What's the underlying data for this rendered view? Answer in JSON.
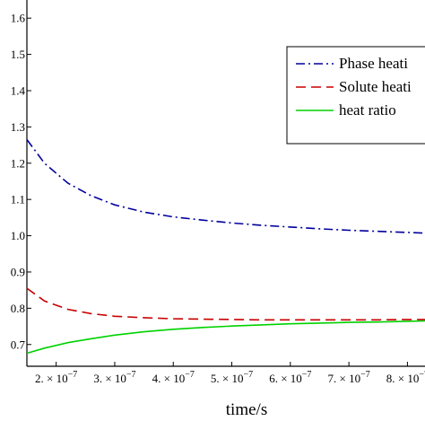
{
  "chart_data": {
    "type": "line",
    "xlabel": "time/s",
    "ylabel": "",
    "title": "",
    "xlim": [
      1.5e-07,
      8.3e-07
    ],
    "ylim": [
      0.64,
      1.65
    ],
    "grid": false,
    "legend_position": "top-right",
    "y_ticks": [
      0.7,
      0.8,
      0.9,
      1.0,
      1.1,
      1.2,
      1.3,
      1.4,
      1.5,
      1.6
    ],
    "y_tick_labels": [
      "0.7",
      "0.8",
      "0.9",
      "1.0",
      "1.1",
      "1.2",
      "1.3",
      "1.4",
      "1.5",
      "1.6"
    ],
    "x_ticks": [
      2e-07,
      3e-07,
      4e-07,
      5e-07,
      6e-07,
      7e-07,
      8e-07
    ],
    "x_tick_mantissas": [
      "2.",
      "3.",
      "4.",
      "5.",
      "6.",
      "7.",
      "8."
    ],
    "x_tick_times": "×",
    "x_tick_base": "10",
    "x_tick_exponent": "−7",
    "series": [
      {
        "name": "Phase heati",
        "color": "#00009e",
        "style": "dash-dot",
        "x": [
          1.5e-07,
          1.8e-07,
          2.2e-07,
          2.6e-07,
          3e-07,
          3.5e-07,
          4e-07,
          4.5e-07,
          5e-07,
          5.5e-07,
          6e-07,
          6.5e-07,
          7e-07,
          7.5e-07,
          8e-07,
          8.3e-07
        ],
        "values": [
          1.265,
          1.2,
          1.145,
          1.11,
          1.085,
          1.065,
          1.052,
          1.043,
          1.035,
          1.029,
          1.024,
          1.019,
          1.015,
          1.012,
          1.009,
          1.007
        ]
      },
      {
        "name": "Solute heati",
        "color": "#c80000",
        "style": "dashed",
        "x": [
          1.5e-07,
          1.8e-07,
          2.2e-07,
          2.6e-07,
          3e-07,
          3.5e-07,
          4e-07,
          4.5e-07,
          5e-07,
          5.5e-07,
          6e-07,
          6.5e-07,
          7e-07,
          7.5e-07,
          8e-07,
          8.3e-07
        ],
        "values": [
          0.855,
          0.82,
          0.797,
          0.785,
          0.778,
          0.774,
          0.771,
          0.77,
          0.769,
          0.768,
          0.768,
          0.768,
          0.768,
          0.768,
          0.769,
          0.769
        ]
      },
      {
        "name": "heat ratio",
        "color": "#00d200",
        "style": "solid",
        "x": [
          1.5e-07,
          1.8e-07,
          2.2e-07,
          2.6e-07,
          3e-07,
          3.5e-07,
          4e-07,
          4.5e-07,
          5e-07,
          5.5e-07,
          6e-07,
          6.5e-07,
          7e-07,
          7.5e-07,
          8e-07,
          8.3e-07
        ],
        "values": [
          0.676,
          0.69,
          0.705,
          0.716,
          0.726,
          0.735,
          0.742,
          0.747,
          0.751,
          0.754,
          0.757,
          0.759,
          0.761,
          0.762,
          0.764,
          0.765
        ]
      }
    ]
  }
}
